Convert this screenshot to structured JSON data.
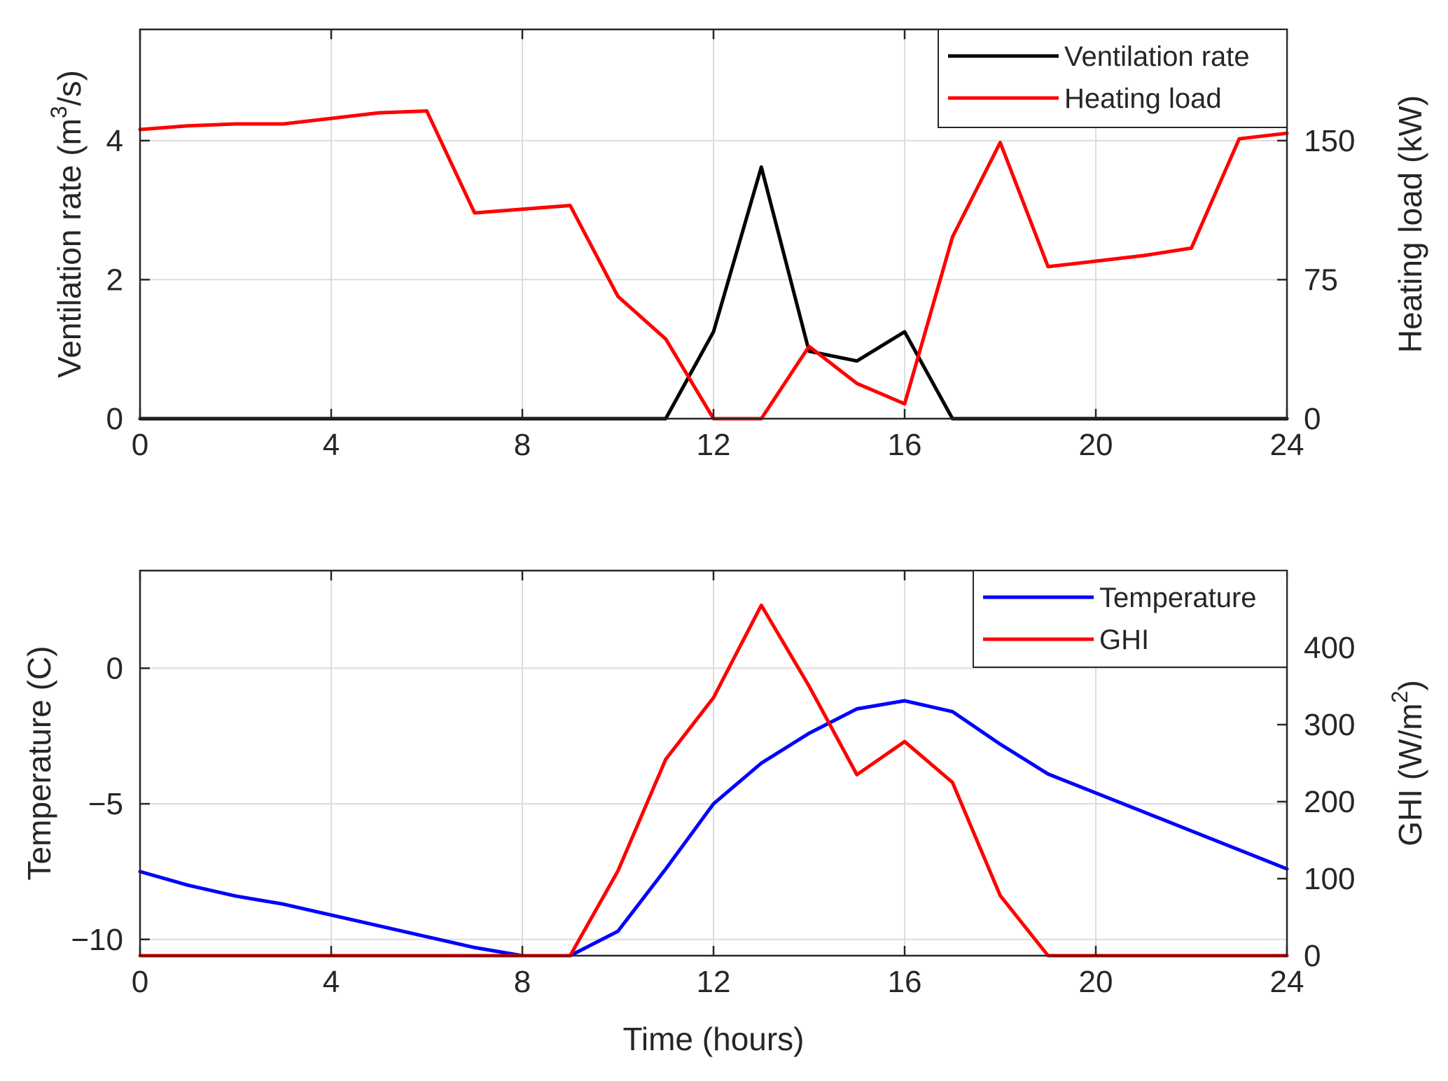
{
  "chart_data": [
    {
      "type": "line",
      "x": [
        0,
        1,
        2,
        3,
        4,
        5,
        6,
        7,
        8,
        9,
        10,
        11,
        12,
        13,
        14,
        15,
        16,
        17,
        18,
        19,
        20,
        21,
        22,
        23,
        24
      ],
      "xlim": [
        0,
        24
      ],
      "xticks": [
        0,
        4,
        8,
        12,
        16,
        20,
        24
      ],
      "xlabel": "",
      "grid": true,
      "legend_location": "top-right",
      "left_axis": {
        "label_prefix": "Ventilation rate (m",
        "label_superscript": "3",
        "label_suffix": "/s)",
        "ylim": [
          0,
          5.6
        ],
        "yticks": [
          0,
          2,
          4
        ]
      },
      "right_axis": {
        "label_prefix": "Heating load (kW)",
        "label_superscript": "",
        "label_suffix": "",
        "ylim": [
          0,
          210
        ],
        "yticks": [
          0,
          75,
          150
        ]
      },
      "series": [
        {
          "name": "Ventilation rate",
          "axis": "left",
          "color": "#000000",
          "values": [
            0,
            0,
            0,
            0,
            0,
            0,
            0,
            0,
            0,
            0,
            0,
            0,
            1.25,
            3.62,
            0.97,
            0.83,
            1.25,
            0,
            0,
            0,
            0,
            0,
            0,
            0,
            0
          ]
        },
        {
          "name": "Heating load",
          "axis": "right",
          "color": "#ff0000",
          "values": [
            156,
            158,
            159,
            159,
            162,
            165,
            166,
            111,
            113,
            115,
            66,
            43,
            0,
            0,
            39,
            19,
            8,
            98,
            149,
            82,
            85,
            88,
            92,
            151,
            154
          ]
        }
      ]
    },
    {
      "type": "line",
      "x": [
        0,
        1,
        2,
        3,
        4,
        5,
        6,
        7,
        8,
        9,
        10,
        11,
        12,
        13,
        14,
        15,
        16,
        17,
        18,
        19,
        20,
        21,
        22,
        23,
        24
      ],
      "xlim": [
        0,
        24
      ],
      "xticks": [
        0,
        4,
        8,
        12,
        16,
        20,
        24
      ],
      "xlabel": "Time (hours)",
      "grid": true,
      "legend_location": "top-right",
      "left_axis": {
        "label_prefix": "Temperature (C)",
        "label_superscript": "",
        "label_suffix": "",
        "ylim": [
          -10.6,
          3.6
        ],
        "yticks": [
          -10,
          -5,
          0
        ]
      },
      "right_axis": {
        "label_prefix": "GHI (W/m",
        "label_superscript": "2",
        "label_suffix": ")",
        "ylim": [
          0,
          500
        ],
        "yticks": [
          0,
          100,
          200,
          300,
          400
        ]
      },
      "series": [
        {
          "name": "Temperature",
          "axis": "left",
          "color": "#0000ff",
          "values": [
            -7.5,
            -8,
            -8.4,
            -8.7,
            -9.1,
            -9.5,
            -9.9,
            -10.3,
            -10.6,
            -10.6,
            -9.7,
            -7.4,
            -5,
            -3.5,
            -2.4,
            -1.5,
            -1.2,
            -1.6,
            -2.8,
            -3.9,
            -4.6,
            -5.3,
            -6,
            -6.7,
            -7.4
          ]
        },
        {
          "name": "GHI",
          "axis": "right",
          "color": "#ff0000",
          "values": [
            0,
            0,
            0,
            0,
            0,
            0,
            0,
            0,
            0,
            0,
            110,
            255,
            335,
            455,
            350,
            235,
            278,
            225,
            78,
            0,
            0,
            0,
            0,
            0,
            0
          ]
        }
      ]
    }
  ]
}
